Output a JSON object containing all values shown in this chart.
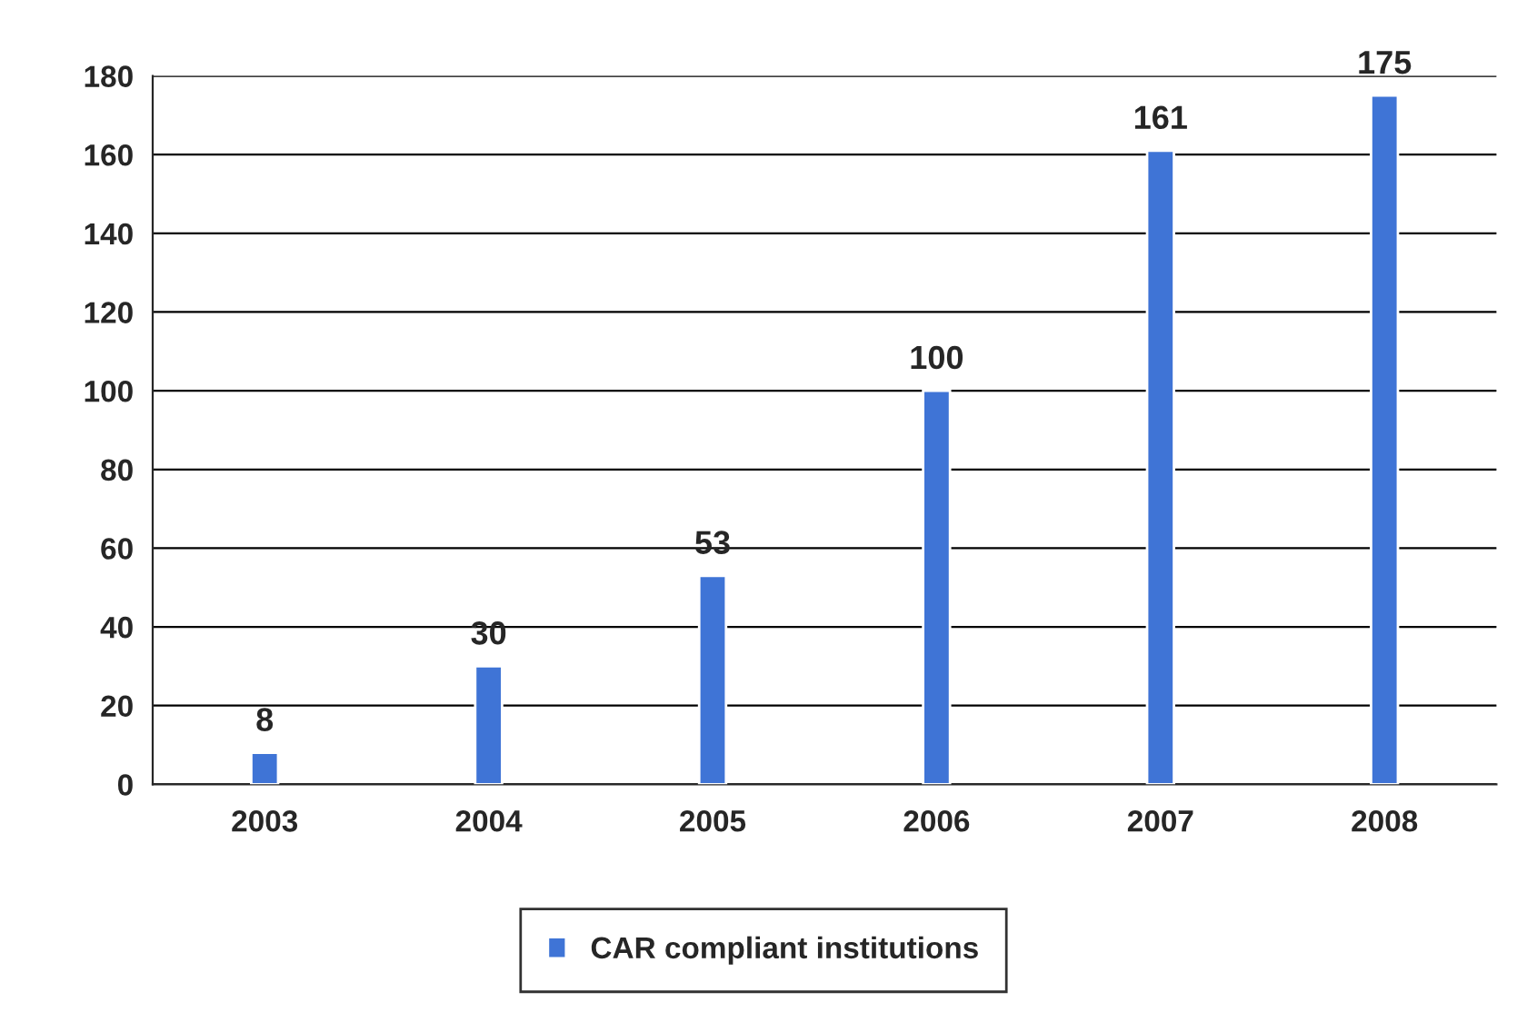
{
  "chart_data": {
    "type": "bar",
    "categories": [
      "2003",
      "2004",
      "2005",
      "2006",
      "2007",
      "2008"
    ],
    "series": [
      {
        "name": "CAR compliant institutions",
        "color": "#3f74d6",
        "values": [
          8,
          30,
          53,
          100,
          161,
          175
        ]
      }
    ],
    "ylim": [
      0,
      180
    ],
    "yticks": [
      0,
      20,
      40,
      60,
      80,
      100,
      120,
      140,
      160,
      180
    ],
    "grid": "y",
    "legend": "bottom",
    "data_labels": true
  }
}
